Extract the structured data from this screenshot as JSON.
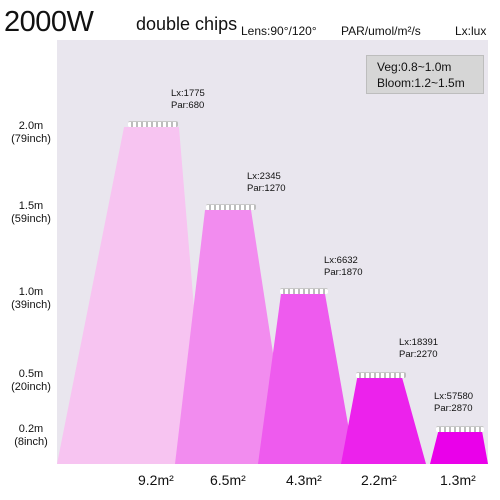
{
  "header": {
    "title_main": "2000W",
    "title_sub": "double chips",
    "lens": "Lens:90°/120°",
    "par_unit": "PAR/umol/m²/s",
    "lx_unit": "Lx:lux"
  },
  "info_box": {
    "veg": "Veg:0.8~1.0m",
    "bloom": "Bloom:1.2~1.5m"
  },
  "heights": [
    {
      "m": "2.0m",
      "inch": "(79inch)"
    },
    {
      "m": "1.5m",
      "inch": "(59inch)"
    },
    {
      "m": "1.0m",
      "inch": "(39inch)"
    },
    {
      "m": "0.5m",
      "inch": "(20inch)"
    },
    {
      "m": "0.2m",
      "inch": "(8inch)"
    }
  ],
  "levels": [
    {
      "lx": "Lx:1775",
      "par": "Par:680",
      "area": "9.2m²",
      "color": "#f7c4f1"
    },
    {
      "lx": "Lx:2345",
      "par": "Par:1270",
      "area": "6.5m²",
      "color": "#f28cef"
    },
    {
      "lx": "Lx:6632",
      "par": "Par:1870",
      "area": "4.3m²",
      "color": "#ee5bee"
    },
    {
      "lx": "Lx:18391",
      "par": "Par:2270",
      "area": "2.2m²",
      "color": "#ec22ec"
    },
    {
      "lx": "Lx:57580",
      "par": "Par:2870",
      "area": "1.3m²",
      "color": "#ea00ea"
    }
  ]
}
